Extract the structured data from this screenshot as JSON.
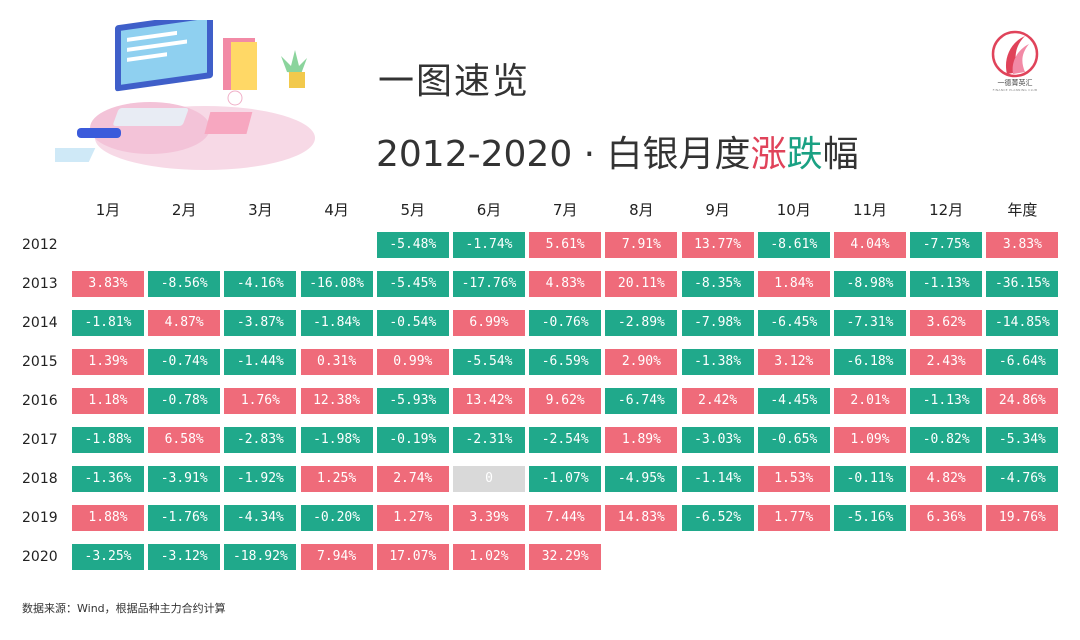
{
  "title_line1": "一图速览",
  "title_line2_prefix": "2012-2020 · 白银月度",
  "title_rise": "涨",
  "title_fall": "跌",
  "title_suffix": "幅",
  "logo_text": "一德菁英汇",
  "logo_subtext": "FINANCE PLANNING CLUB",
  "source": "数据来源：Wind，根据品种主力合约计算",
  "colors": {
    "rise": "#ef6b7a",
    "fall": "#20a98b",
    "flat": "#d9d9d9",
    "title_rise": "#e0435a",
    "title_fall": "#1aa183"
  },
  "chart_data": {
    "type": "table",
    "columns": [
      "1月",
      "2月",
      "3月",
      "4月",
      "5月",
      "6月",
      "7月",
      "8月",
      "9月",
      "10月",
      "11月",
      "12月",
      "年度"
    ],
    "rows": [
      {
        "year": "2012",
        "values": [
          "",
          "",
          "",
          "",
          "-5.48%",
          "-1.74%",
          "5.61%",
          "7.91%",
          "13.77%",
          "-8.61%",
          "4.04%",
          "-7.75%",
          "3.83%"
        ]
      },
      {
        "year": "2013",
        "values": [
          "3.83%",
          "-8.56%",
          "-4.16%",
          "-16.08%",
          "-5.45%",
          "-17.76%",
          "4.83%",
          "20.11%",
          "-8.35%",
          "1.84%",
          "-8.98%",
          "-1.13%",
          "-36.15%"
        ]
      },
      {
        "year": "2014",
        "values": [
          "-1.81%",
          "4.87%",
          "-3.87%",
          "-1.84%",
          "-0.54%",
          "6.99%",
          "-0.76%",
          "-2.89%",
          "-7.98%",
          "-6.45%",
          "-7.31%",
          "3.62%",
          "-14.85%"
        ]
      },
      {
        "year": "2015",
        "values": [
          "1.39%",
          "-0.74%",
          "-1.44%",
          "0.31%",
          "0.99%",
          "-5.54%",
          "-6.59%",
          "2.90%",
          "-1.38%",
          "3.12%",
          "-6.18%",
          "2.43%",
          "-6.64%"
        ]
      },
      {
        "year": "2016",
        "values": [
          "1.18%",
          "-0.78%",
          "1.76%",
          "12.38%",
          "-5.93%",
          "13.42%",
          "9.62%",
          "-6.74%",
          "2.42%",
          "-4.45%",
          "2.01%",
          "-1.13%",
          "24.86%"
        ]
      },
      {
        "year": "2017",
        "values": [
          "-1.88%",
          "6.58%",
          "-2.83%",
          "-1.98%",
          "-0.19%",
          "-2.31%",
          "-2.54%",
          "1.89%",
          "-3.03%",
          "-0.65%",
          "1.09%",
          "-0.82%",
          "-5.34%"
        ]
      },
      {
        "year": "2018",
        "values": [
          "-1.36%",
          "-3.91%",
          "-1.92%",
          "1.25%",
          "2.74%",
          "0",
          "-1.07%",
          "-4.95%",
          "-1.14%",
          "1.53%",
          "-0.11%",
          "4.82%",
          "-4.76%"
        ]
      },
      {
        "year": "2019",
        "values": [
          "1.88%",
          "-1.76%",
          "-4.34%",
          "-0.20%",
          "1.27%",
          "3.39%",
          "7.44%",
          "14.83%",
          "-6.52%",
          "1.77%",
          "-5.16%",
          "6.36%",
          "19.76%"
        ]
      },
      {
        "year": "2020",
        "values": [
          "-3.25%",
          "-3.12%",
          "-18.92%",
          "7.94%",
          "17.07%",
          "1.02%",
          "32.29%",
          "",
          "",
          "",
          "",
          "",
          ""
        ]
      }
    ]
  }
}
